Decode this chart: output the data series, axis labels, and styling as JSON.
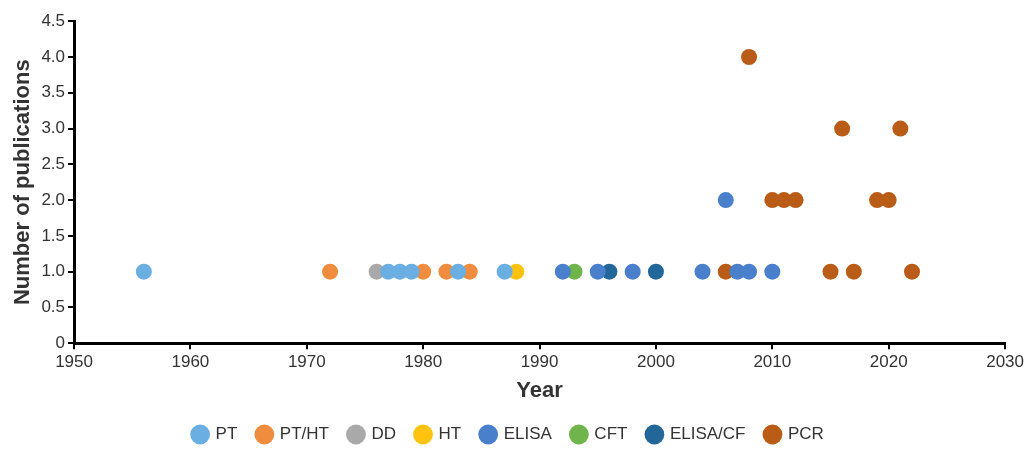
{
  "chart_data": {
    "type": "scatter",
    "xlabel": "Year",
    "ylabel": "Number of publications",
    "xlim": [
      1950,
      2030
    ],
    "xticks": [
      1950,
      1960,
      1970,
      1980,
      1990,
      2000,
      2010,
      2020,
      2030
    ],
    "ylim": [
      0,
      4.5
    ],
    "yticks": [
      0,
      {
        "value": 0.5,
        "label": "0.5"
      },
      {
        "value": 1,
        "label": "1.0"
      },
      {
        "value": 1.5,
        "label": "1.5"
      },
      {
        "value": 2,
        "label": "2.0"
      },
      {
        "value": 2.5,
        "label": "2.5"
      },
      {
        "value": 3,
        "label": "3.0"
      },
      {
        "value": 3.5,
        "label": "3.5"
      },
      {
        "value": 4,
        "label": "4.0"
      },
      4.5
    ],
    "grid": false,
    "legend": "bottom",
    "marker": "circle",
    "series": [
      {
        "name": "PT",
        "color": "#6aaee2",
        "x": [
          1956,
          1977,
          1978,
          1979,
          1983,
          1987
        ],
        "values": [
          1,
          1,
          1,
          1,
          1,
          1
        ]
      },
      {
        "name": "PT/HT",
        "color": "#ef8c3e",
        "x": [
          1972,
          1980,
          1982,
          1984
        ],
        "values": [
          1,
          1,
          1,
          1
        ]
      },
      {
        "name": "DD",
        "color": "#a9a9a9",
        "x": [
          1976
        ],
        "values": [
          1
        ]
      },
      {
        "name": "HT",
        "color": "#ffc20e",
        "x": [
          1988
        ],
        "values": [
          1
        ]
      },
      {
        "name": "ELISA",
        "color": "#4a7fcb",
        "x": [
          1992,
          1995,
          1998,
          2004,
          2006,
          2007,
          2008,
          2010
        ],
        "values": [
          1,
          1,
          1,
          1,
          2,
          1,
          1,
          1
        ]
      },
      {
        "name": "CFT",
        "color": "#70b44c",
        "x": [
          1993
        ],
        "values": [
          1
        ]
      },
      {
        "name": "ELISA/CF",
        "color": "#23669a",
        "x": [
          1996,
          2000
        ],
        "values": [
          1,
          1
        ]
      },
      {
        "name": "PCR",
        "color": "#b85c17",
        "x": [
          2006,
          2008,
          2010,
          2011,
          2012,
          2015,
          2016,
          2017,
          2019,
          2020,
          2021,
          2022
        ],
        "values": [
          1,
          4,
          2,
          2,
          2,
          1,
          3,
          1,
          2,
          2,
          3,
          1
        ]
      }
    ]
  }
}
